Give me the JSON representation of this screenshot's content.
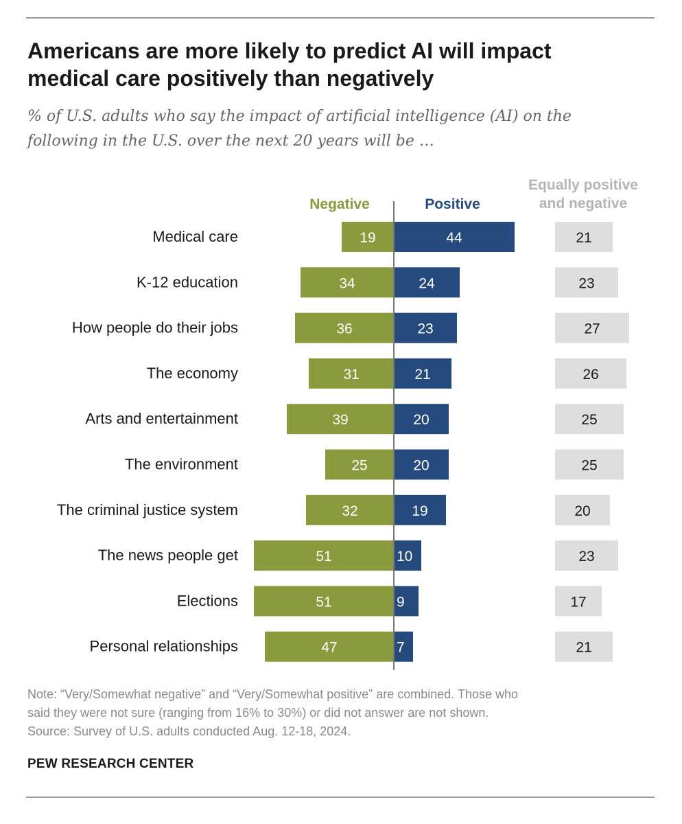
{
  "title_lines": [
    "Americans are more likely to predict AI will impact",
    "medical care positively than negatively"
  ],
  "subtitle_lines": [
    "% of U.S. adults who say the impact of artificial intelligence (AI) on the",
    "following in the U.S. over the next 20 years will be …"
  ],
  "colors": {
    "negative": "#8a9b3e",
    "positive": "#254a7e",
    "equal_bar": "#dedede",
    "equal_header": "#b5b5b5",
    "axis": "#777777"
  },
  "chart_data": {
    "type": "bar",
    "orientation": "horizontal-diverging",
    "column_headers": {
      "negative": "Negative",
      "positive": "Positive",
      "equal_line1": "Equally positive",
      "equal_line2": "and negative"
    },
    "categories": [
      "Medical care",
      "K-12 education",
      "How people do their jobs",
      "The economy",
      "Arts and entertainment",
      "The environment",
      "The criminal justice system",
      "The news people get",
      "Elections",
      "Personal relationships"
    ],
    "series": [
      {
        "name": "Negative",
        "values": [
          19,
          34,
          36,
          31,
          39,
          25,
          32,
          51,
          51,
          47
        ]
      },
      {
        "name": "Positive",
        "values": [
          44,
          24,
          23,
          21,
          20,
          20,
          19,
          10,
          9,
          7
        ]
      },
      {
        "name": "Equally positive and negative",
        "values": [
          21,
          23,
          27,
          26,
          25,
          25,
          20,
          23,
          17,
          21
        ]
      }
    ],
    "unit": "%"
  },
  "note_lines": [
    "Note: “Very/Somewhat negative” and “Very/Somewhat positive” are combined. Those who",
    "said they were not sure (ranging from 16% to 30%) or did not answer are not shown.",
    "Source: Survey of U.S. adults conducted Aug. 12-18, 2024."
  ],
  "source_brand": "PEW RESEARCH CENTER"
}
